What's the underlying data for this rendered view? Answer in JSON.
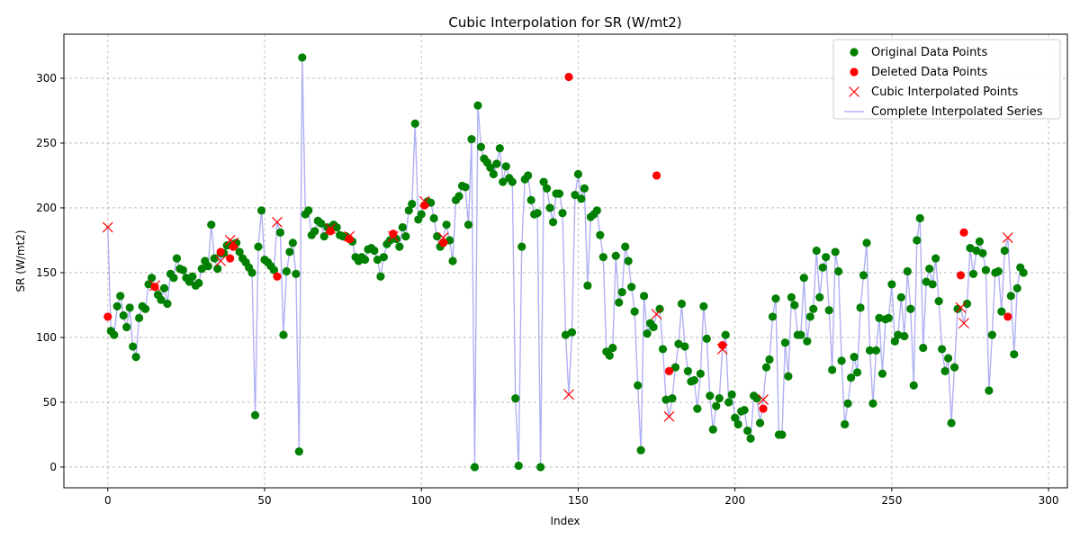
{
  "chart_data": {
    "type": "scatter",
    "title": "Cubic Interpolation for SR (W/mt2)",
    "xlabel": "Index",
    "ylabel": "SR (W/mt2)",
    "xlim": [
      -14,
      306
    ],
    "ylim": [
      -16,
      334
    ],
    "xticks": [
      0,
      50,
      100,
      150,
      200,
      250,
      300
    ],
    "yticks": [
      0,
      50,
      100,
      150,
      200,
      250,
      300
    ],
    "grid": true,
    "legend_position": "top-right",
    "colors": {
      "original": "#008000",
      "deleted": "#ff0000",
      "cubic": "#ff0000",
      "series": "#b0b0f5"
    },
    "legend": [
      {
        "key": "original",
        "label": "Original Data Points"
      },
      {
        "key": "deleted",
        "label": "Deleted Data Points"
      },
      {
        "key": "cubic",
        "label": "Cubic Interpolated Points"
      },
      {
        "key": "series",
        "label": "Complete Interpolated Series"
      }
    ],
    "original_points": [
      [
        1,
        105
      ],
      [
        2,
        102
      ],
      [
        3,
        124
      ],
      [
        4,
        132
      ],
      [
        5,
        117
      ],
      [
        6,
        108
      ],
      [
        7,
        123
      ],
      [
        8,
        93
      ],
      [
        9,
        85
      ],
      [
        10,
        115
      ],
      [
        11,
        124
      ],
      [
        12,
        122
      ],
      [
        13,
        141
      ],
      [
        14,
        146
      ],
      [
        16,
        133
      ],
      [
        17,
        129
      ],
      [
        18,
        138
      ],
      [
        19,
        126
      ],
      [
        20,
        149
      ],
      [
        21,
        146
      ],
      [
        22,
        161
      ],
      [
        23,
        153
      ],
      [
        24,
        152
      ],
      [
        25,
        146
      ],
      [
        26,
        143
      ],
      [
        27,
        147
      ],
      [
        28,
        140
      ],
      [
        29,
        142
      ],
      [
        30,
        153
      ],
      [
        31,
        159
      ],
      [
        32,
        155
      ],
      [
        33,
        187
      ],
      [
        34,
        161
      ],
      [
        35,
        153
      ],
      [
        36,
        165
      ],
      [
        37,
        165
      ],
      [
        38,
        171
      ],
      [
        40,
        172
      ],
      [
        41,
        173
      ],
      [
        42,
        166
      ],
      [
        43,
        161
      ],
      [
        44,
        158
      ],
      [
        45,
        154
      ],
      [
        46,
        150
      ],
      [
        47,
        40
      ],
      [
        48,
        170
      ],
      [
        49,
        198
      ],
      [
        50,
        160
      ],
      [
        51,
        158
      ],
      [
        52,
        155
      ],
      [
        53,
        152
      ],
      [
        55,
        181
      ],
      [
        56,
        102
      ],
      [
        57,
        151
      ],
      [
        58,
        166
      ],
      [
        59,
        173
      ],
      [
        60,
        149
      ],
      [
        61,
        12
      ],
      [
        62,
        316
      ],
      [
        63,
        195
      ],
      [
        64,
        198
      ],
      [
        65,
        179
      ],
      [
        66,
        182
      ],
      [
        67,
        190
      ],
      [
        68,
        188
      ],
      [
        69,
        178
      ],
      [
        70,
        185
      ],
      [
        72,
        187
      ],
      [
        73,
        185
      ],
      [
        74,
        179
      ],
      [
        75,
        178
      ],
      [
        76,
        178
      ],
      [
        78,
        174
      ],
      [
        79,
        162
      ],
      [
        80,
        159
      ],
      [
        81,
        162
      ],
      [
        82,
        160
      ],
      [
        83,
        168
      ],
      [
        84,
        169
      ],
      [
        85,
        167
      ],
      [
        86,
        160
      ],
      [
        87,
        147
      ],
      [
        88,
        162
      ],
      [
        89,
        172
      ],
      [
        90,
        175
      ],
      [
        92,
        176
      ],
      [
        93,
        170
      ],
      [
        94,
        185
      ],
      [
        95,
        178
      ],
      [
        96,
        198
      ],
      [
        97,
        203
      ],
      [
        98,
        265
      ],
      [
        99,
        191
      ],
      [
        100,
        195
      ],
      [
        102,
        205
      ],
      [
        103,
        204
      ],
      [
        104,
        192
      ],
      [
        105,
        178
      ],
      [
        106,
        170
      ],
      [
        108,
        187
      ],
      [
        109,
        175
      ],
      [
        110,
        159
      ],
      [
        111,
        206
      ],
      [
        112,
        209
      ],
      [
        113,
        217
      ],
      [
        114,
        216
      ],
      [
        115,
        187
      ],
      [
        116,
        253
      ],
      [
        117,
        0
      ],
      [
        118,
        279
      ],
      [
        119,
        247
      ],
      [
        120,
        238
      ],
      [
        121,
        235
      ],
      [
        122,
        231
      ],
      [
        123,
        226
      ],
      [
        124,
        234
      ],
      [
        125,
        246
      ],
      [
        126,
        220
      ],
      [
        127,
        232
      ],
      [
        128,
        223
      ],
      [
        129,
        220
      ],
      [
        130,
        53
      ],
      [
        131,
        1
      ],
      [
        132,
        170
      ],
      [
        133,
        222
      ],
      [
        134,
        225
      ],
      [
        135,
        206
      ],
      [
        136,
        195
      ],
      [
        137,
        196
      ],
      [
        138,
        0
      ],
      [
        139,
        220
      ],
      [
        140,
        215
      ],
      [
        141,
        200
      ],
      [
        142,
        189
      ],
      [
        143,
        211
      ],
      [
        144,
        211
      ],
      [
        145,
        196
      ],
      [
        146,
        102
      ],
      [
        148,
        104
      ],
      [
        149,
        210
      ],
      [
        150,
        226
      ],
      [
        151,
        207
      ],
      [
        152,
        215
      ],
      [
        153,
        140
      ],
      [
        154,
        193
      ],
      [
        155,
        195
      ],
      [
        156,
        198
      ],
      [
        157,
        179
      ],
      [
        158,
        162
      ],
      [
        159,
        89
      ],
      [
        160,
        86
      ],
      [
        161,
        92
      ],
      [
        162,
        163
      ],
      [
        163,
        127
      ],
      [
        164,
        135
      ],
      [
        165,
        170
      ],
      [
        166,
        159
      ],
      [
        167,
        139
      ],
      [
        168,
        120
      ],
      [
        169,
        63
      ],
      [
        170,
        13
      ],
      [
        171,
        132
      ],
      [
        172,
        103
      ],
      [
        173,
        111
      ],
      [
        174,
        108
      ],
      [
        176,
        122
      ],
      [
        177,
        91
      ],
      [
        178,
        52
      ],
      [
        180,
        53
      ],
      [
        181,
        77
      ],
      [
        182,
        95
      ],
      [
        183,
        126
      ],
      [
        184,
        93
      ],
      [
        185,
        74
      ],
      [
        186,
        66
      ],
      [
        187,
        67
      ],
      [
        188,
        45
      ],
      [
        189,
        72
      ],
      [
        190,
        124
      ],
      [
        191,
        99
      ],
      [
        192,
        55
      ],
      [
        193,
        29
      ],
      [
        194,
        47
      ],
      [
        195,
        53
      ],
      [
        197,
        102
      ],
      [
        198,
        50
      ],
      [
        199,
        56
      ],
      [
        200,
        38
      ],
      [
        201,
        33
      ],
      [
        202,
        43
      ],
      [
        203,
        44
      ],
      [
        204,
        28
      ],
      [
        205,
        22
      ],
      [
        206,
        55
      ],
      [
        207,
        53
      ],
      [
        208,
        34
      ],
      [
        210,
        77
      ],
      [
        211,
        83
      ],
      [
        212,
        116
      ],
      [
        213,
        130
      ],
      [
        214,
        25
      ],
      [
        215,
        25
      ],
      [
        216,
        96
      ],
      [
        217,
        70
      ],
      [
        218,
        131
      ],
      [
        219,
        125
      ],
      [
        220,
        102
      ],
      [
        221,
        102
      ],
      [
        222,
        146
      ],
      [
        223,
        97
      ],
      [
        224,
        116
      ],
      [
        225,
        122
      ],
      [
        226,
        167
      ],
      [
        227,
        131
      ],
      [
        228,
        154
      ],
      [
        229,
        162
      ],
      [
        230,
        121
      ],
      [
        231,
        75
      ],
      [
        232,
        166
      ],
      [
        233,
        151
      ],
      [
        234,
        82
      ],
      [
        235,
        33
      ],
      [
        236,
        49
      ],
      [
        237,
        69
      ],
      [
        238,
        85
      ],
      [
        239,
        73
      ],
      [
        240,
        123
      ],
      [
        241,
        148
      ],
      [
        242,
        173
      ],
      [
        243,
        90
      ],
      [
        244,
        49
      ],
      [
        245,
        90
      ],
      [
        246,
        115
      ],
      [
        247,
        72
      ],
      [
        248,
        114
      ],
      [
        249,
        115
      ],
      [
        250,
        141
      ],
      [
        251,
        97
      ],
      [
        252,
        102
      ],
      [
        253,
        131
      ],
      [
        254,
        101
      ],
      [
        255,
        151
      ],
      [
        256,
        122
      ],
      [
        257,
        63
      ],
      [
        258,
        175
      ],
      [
        259,
        192
      ],
      [
        260,
        92
      ],
      [
        261,
        143
      ],
      [
        262,
        153
      ],
      [
        263,
        141
      ],
      [
        264,
        161
      ],
      [
        265,
        128
      ],
      [
        266,
        91
      ],
      [
        267,
        74
      ],
      [
        268,
        84
      ],
      [
        269,
        34
      ],
      [
        270,
        77
      ],
      [
        271,
        122
      ],
      [
        274,
        126
      ],
      [
        275,
        169
      ],
      [
        276,
        149
      ],
      [
        277,
        167
      ],
      [
        278,
        174
      ],
      [
        279,
        165
      ],
      [
        280,
        152
      ],
      [
        281,
        59
      ],
      [
        282,
        102
      ],
      [
        283,
        150
      ],
      [
        284,
        151
      ],
      [
        285,
        120
      ],
      [
        286,
        167
      ],
      [
        288,
        132
      ],
      [
        289,
        87
      ],
      [
        290,
        138
      ],
      [
        291,
        154
      ],
      [
        292,
        150
      ]
    ],
    "deleted_points": [
      [
        0,
        116
      ],
      [
        15,
        139
      ],
      [
        36,
        166
      ],
      [
        39,
        161
      ],
      [
        40,
        170
      ],
      [
        54,
        147
      ],
      [
        71,
        182
      ],
      [
        77,
        176
      ],
      [
        91,
        180
      ],
      [
        101,
        202
      ],
      [
        107,
        173
      ],
      [
        147,
        301
      ],
      [
        175,
        225
      ],
      [
        179,
        74
      ],
      [
        196,
        94
      ],
      [
        209,
        45
      ],
      [
        272,
        148
      ],
      [
        273,
        181
      ],
      [
        287,
        116
      ]
    ],
    "cubic_points": [
      [
        0,
        185
      ],
      [
        15,
        140
      ],
      [
        36,
        159
      ],
      [
        39,
        175
      ],
      [
        40,
        173
      ],
      [
        54,
        189
      ],
      [
        71,
        184
      ],
      [
        77,
        178
      ],
      [
        91,
        178
      ],
      [
        101,
        205
      ],
      [
        107,
        177
      ],
      [
        147,
        56
      ],
      [
        175,
        118
      ],
      [
        179,
        39
      ],
      [
        196,
        91
      ],
      [
        209,
        52
      ],
      [
        272,
        123
      ],
      [
        273,
        111
      ],
      [
        287,
        177
      ]
    ]
  }
}
